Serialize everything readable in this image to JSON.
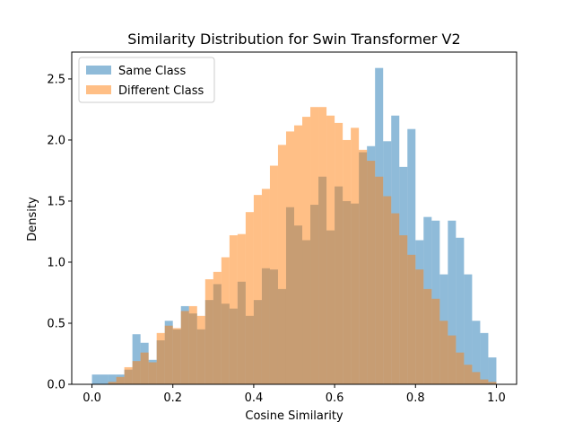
{
  "chart_data": {
    "type": "histogram",
    "title": "Similarity Distribution for Swin Transformer V2",
    "xlabel": "Cosine Similarity",
    "ylabel": "Density",
    "xlim": [
      -0.05,
      1.05
    ],
    "ylim": [
      0,
      2.72
    ],
    "xticks": [
      0.0,
      0.2,
      0.4,
      0.6,
      0.8,
      1.0
    ],
    "xtick_labels": [
      "0.0",
      "0.2",
      "0.4",
      "0.6",
      "0.8",
      "1.0"
    ],
    "yticks": [
      0.0,
      0.5,
      1.0,
      1.5,
      2.0,
      2.5
    ],
    "ytick_labels": [
      "0.0",
      "0.5",
      "1.0",
      "1.5",
      "2.0",
      "2.5"
    ],
    "bin_edges": [
      0.0,
      0.02,
      0.04,
      0.06,
      0.08,
      0.1,
      0.12,
      0.14,
      0.16,
      0.18,
      0.2,
      0.22,
      0.24,
      0.26,
      0.28,
      0.3,
      0.32,
      0.34,
      0.36,
      0.38,
      0.4,
      0.42,
      0.44,
      0.46,
      0.48,
      0.5,
      0.52,
      0.54,
      0.56,
      0.58,
      0.6,
      0.62,
      0.64,
      0.66,
      0.68,
      0.7,
      0.72,
      0.74,
      0.76,
      0.78,
      0.8,
      0.82,
      0.84,
      0.86,
      0.88,
      0.9,
      0.92,
      0.94,
      0.96,
      0.98,
      1.0
    ],
    "legend_position": "upper-left",
    "series": [
      {
        "name": "Same Class",
        "color": "#1f77b4",
        "alpha": 0.5,
        "values": [
          0.08,
          0.08,
          0.08,
          0.08,
          0.12,
          0.41,
          0.34,
          0.2,
          0.36,
          0.52,
          0.45,
          0.64,
          0.58,
          0.45,
          0.69,
          0.82,
          0.66,
          0.62,
          0.84,
          0.56,
          0.69,
          0.95,
          0.94,
          0.78,
          1.45,
          1.3,
          1.18,
          1.47,
          1.7,
          1.26,
          1.62,
          1.5,
          1.48,
          1.9,
          1.95,
          2.59,
          1.99,
          2.2,
          1.78,
          2.09,
          1.18,
          1.37,
          1.34,
          0.9,
          1.34,
          1.2,
          0.9,
          0.52,
          0.42,
          0.22
        ]
      },
      {
        "name": "Different Class",
        "color": "#ff7f0e",
        "alpha": 0.5,
        "values": [
          0.0,
          0.0,
          0.02,
          0.06,
          0.14,
          0.19,
          0.26,
          0.18,
          0.42,
          0.48,
          0.46,
          0.6,
          0.64,
          0.56,
          0.86,
          0.92,
          1.04,
          1.22,
          1.23,
          1.41,
          1.55,
          1.6,
          1.79,
          1.96,
          2.07,
          2.12,
          2.19,
          2.27,
          2.27,
          2.2,
          2.14,
          2.0,
          2.1,
          1.92,
          1.83,
          1.7,
          1.54,
          1.4,
          1.22,
          1.06,
          0.94,
          0.78,
          0.7,
          0.52,
          0.4,
          0.26,
          0.16,
          0.1,
          0.04,
          0.02
        ]
      }
    ]
  }
}
